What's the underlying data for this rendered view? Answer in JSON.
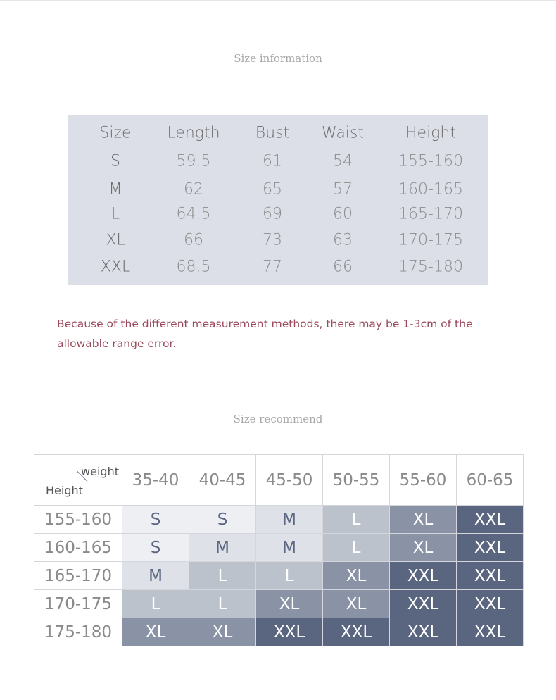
{
  "size_info": {
    "title": "Size information",
    "headers": [
      "Size",
      "Length",
      "Bust",
      "Waist",
      "Height"
    ],
    "rows": [
      [
        "S",
        "59.5",
        "61",
        "54",
        "155-160"
      ],
      [
        "M",
        "62",
        "65",
        "57",
        "160-165"
      ],
      [
        "L",
        "64.5",
        "69",
        "60",
        "165-170"
      ],
      [
        "XL",
        "66",
        "73",
        "63",
        "170-175"
      ],
      [
        "XXL",
        "68.5",
        "77",
        "66",
        "175-180"
      ]
    ]
  },
  "note": "Because of the different measurement methods, there may be 1-3cm of the allowable range error.",
  "size_recommend": {
    "title": "Size recommend",
    "corner_weight": "weight",
    "corner_height": "Height",
    "weights": [
      "35-40",
      "40-45",
      "45-50",
      "50-55",
      "55-60",
      "60-65"
    ],
    "rows": [
      {
        "height": "155-160",
        "sizes": [
          "S",
          "S",
          "M",
          "L",
          "XL",
          "XXL"
        ]
      },
      {
        "height": "160-165",
        "sizes": [
          "S",
          "M",
          "M",
          "L",
          "XL",
          "XXL"
        ]
      },
      {
        "height": "165-170",
        "sizes": [
          "M",
          "L",
          "L",
          "XL",
          "XXL",
          "XXL"
        ]
      },
      {
        "height": "170-175",
        "sizes": [
          "L",
          "L",
          "XL",
          "XL",
          "XXL",
          "XXL"
        ]
      },
      {
        "height": "175-180",
        "sizes": [
          "XL",
          "XL",
          "XXL",
          "XXL",
          "XXL",
          "XXL"
        ]
      }
    ]
  },
  "colors": {
    "S": "#eeeff2",
    "M": "#dfe1e8",
    "L": "#bcc2cc",
    "XL": "#8a93a6",
    "XXL": "#5a6680",
    "light_text": "#5b6680"
  }
}
